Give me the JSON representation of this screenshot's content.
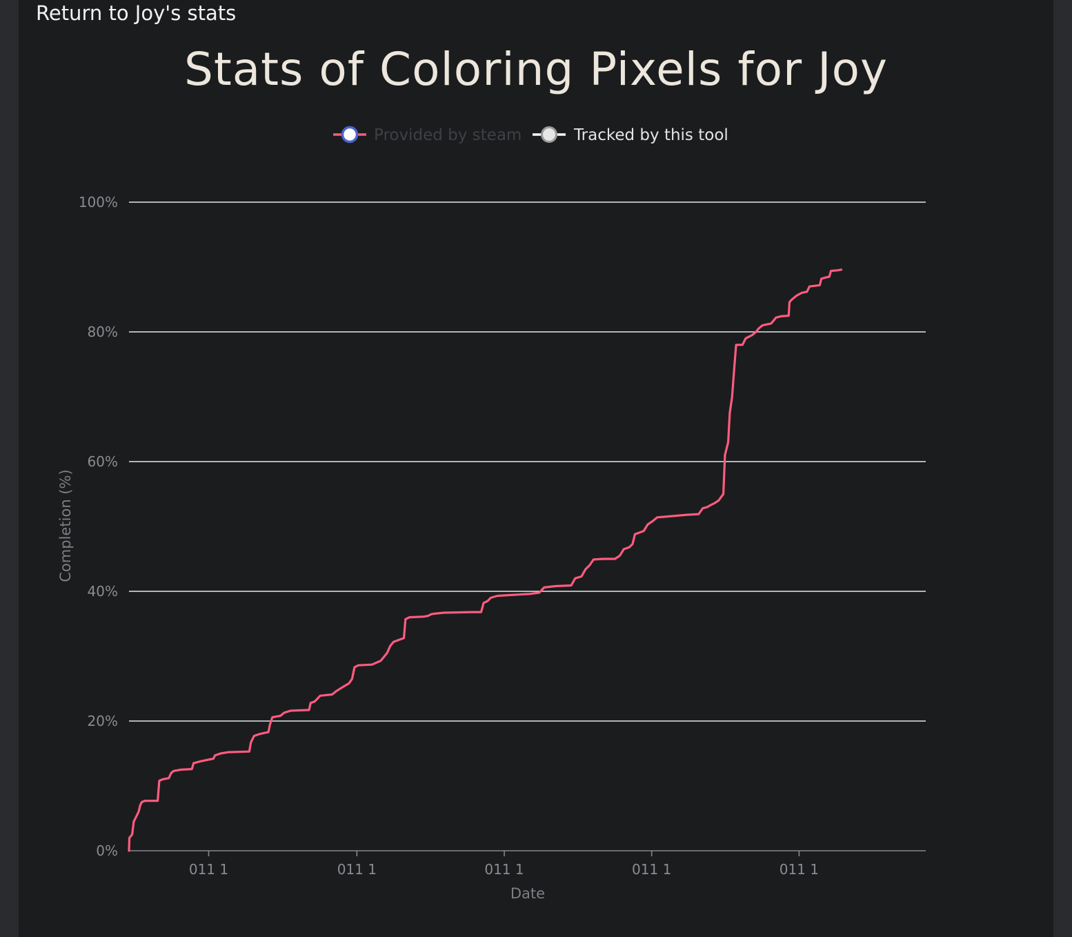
{
  "nav": {
    "return_label": "Return to Joy's stats"
  },
  "page": {
    "title": "Stats of Coloring Pixels for Joy"
  },
  "colors": {
    "panel_bg": "#1b1c1e",
    "gridline": "#e8e8e8",
    "steam_series": "#ff5c7f",
    "tracked_series": "#ffffff",
    "steam_marker_ring": "#4e63c7"
  },
  "chart_data": {
    "type": "line",
    "xlabel": "Date",
    "ylabel": "Completion (%)",
    "ylim": [
      0,
      100
    ],
    "y_ticks": [
      "0%",
      "20%",
      "40%",
      "60%",
      "80%",
      "100%"
    ],
    "x_ticks": [
      "011 1",
      "011 1",
      "011 1",
      "011 1",
      "011 1"
    ],
    "xlim": [
      0,
      100
    ],
    "x_tick_positions": [
      10,
      28.6,
      47.1,
      65.6,
      84.1
    ],
    "grid": true,
    "legend_position": "top-center",
    "series": [
      {
        "name": "Provided by steam",
        "color": "#ff5c7f",
        "legend_dimmed": true,
        "points": [
          [
            0.0,
            0.0
          ],
          [
            0.05,
            2.0
          ],
          [
            0.4,
            2.5
          ],
          [
            0.6,
            4.5
          ],
          [
            1.0,
            5.5
          ],
          [
            1.2,
            6.0
          ],
          [
            1.4,
            7.0
          ],
          [
            1.6,
            7.5
          ],
          [
            2.0,
            7.7
          ],
          [
            2.5,
            7.7
          ],
          [
            3.6,
            7.7
          ],
          [
            3.8,
            10.8
          ],
          [
            4.2,
            11.0
          ],
          [
            5.0,
            11.2
          ],
          [
            5.3,
            12.0
          ],
          [
            5.6,
            12.3
          ],
          [
            6.5,
            12.5
          ],
          [
            7.9,
            12.6
          ],
          [
            8.1,
            13.5
          ],
          [
            9.0,
            13.8
          ],
          [
            10.6,
            14.2
          ],
          [
            10.8,
            14.7
          ],
          [
            11.5,
            15.0
          ],
          [
            12.5,
            15.2
          ],
          [
            15.1,
            15.3
          ],
          [
            15.3,
            16.7
          ],
          [
            15.7,
            17.7
          ],
          [
            16.4,
            18.0
          ],
          [
            17.5,
            18.3
          ],
          [
            17.7,
            19.5
          ],
          [
            18.0,
            20.6
          ],
          [
            19.0,
            20.8
          ],
          [
            19.5,
            21.3
          ],
          [
            20.3,
            21.6
          ],
          [
            22.6,
            21.7
          ],
          [
            22.8,
            22.8
          ],
          [
            23.3,
            23.0
          ],
          [
            24.0,
            23.9
          ],
          [
            25.5,
            24.1
          ],
          [
            26.0,
            24.6
          ],
          [
            26.9,
            25.3
          ],
          [
            27.6,
            25.8
          ],
          [
            28.0,
            26.5
          ],
          [
            28.3,
            28.3
          ],
          [
            28.8,
            28.6
          ],
          [
            30.5,
            28.7
          ],
          [
            31.6,
            29.3
          ],
          [
            32.4,
            30.5
          ],
          [
            32.8,
            31.6
          ],
          [
            33.2,
            32.2
          ],
          [
            34.5,
            32.8
          ],
          [
            34.7,
            35.7
          ],
          [
            35.2,
            36.0
          ],
          [
            37.0,
            36.1
          ],
          [
            37.5,
            36.2
          ],
          [
            38.0,
            36.5
          ],
          [
            39.5,
            36.7
          ],
          [
            43.0,
            36.8
          ],
          [
            44.2,
            36.8
          ],
          [
            44.5,
            38.2
          ],
          [
            45.0,
            38.5
          ],
          [
            45.4,
            39.0
          ],
          [
            46.2,
            39.3
          ],
          [
            47.5,
            39.4
          ],
          [
            50.3,
            39.6
          ],
          [
            51.5,
            39.8
          ],
          [
            52.1,
            40.6
          ],
          [
            53.5,
            40.8
          ],
          [
            55.5,
            40.9
          ],
          [
            56.0,
            42.0
          ],
          [
            56.8,
            42.3
          ],
          [
            57.3,
            43.4
          ],
          [
            57.8,
            44.0
          ],
          [
            58.3,
            44.9
          ],
          [
            59.5,
            45.0
          ],
          [
            61.0,
            45.0
          ],
          [
            61.6,
            45.5
          ],
          [
            62.1,
            46.5
          ],
          [
            62.8,
            46.8
          ],
          [
            63.2,
            47.3
          ],
          [
            63.5,
            48.8
          ],
          [
            64.6,
            49.3
          ],
          [
            65.1,
            50.3
          ],
          [
            65.7,
            50.8
          ],
          [
            66.3,
            51.4
          ],
          [
            67.3,
            51.5
          ],
          [
            70.0,
            51.8
          ],
          [
            71.5,
            51.9
          ],
          [
            72.0,
            52.8
          ],
          [
            72.6,
            53.0
          ],
          [
            73.0,
            53.3
          ],
          [
            73.5,
            53.6
          ],
          [
            74.0,
            54.0
          ],
          [
            74.6,
            55.0
          ],
          [
            74.8,
            61.0
          ],
          [
            75.2,
            63.0
          ],
          [
            75.4,
            67.5
          ],
          [
            75.7,
            70.0
          ],
          [
            76.0,
            75.0
          ],
          [
            76.2,
            78.0
          ],
          [
            77.0,
            78.0
          ],
          [
            77.4,
            79.0
          ],
          [
            78.2,
            79.5
          ],
          [
            78.7,
            80.0
          ],
          [
            79.0,
            80.5
          ],
          [
            79.5,
            81.0
          ],
          [
            80.6,
            81.3
          ],
          [
            81.2,
            82.2
          ],
          [
            81.8,
            82.4
          ],
          [
            82.8,
            82.5
          ],
          [
            82.9,
            84.6
          ],
          [
            83.2,
            85.0
          ],
          [
            83.8,
            85.6
          ],
          [
            84.4,
            86.0
          ],
          [
            85.1,
            86.2
          ],
          [
            85.4,
            87.0
          ],
          [
            86.7,
            87.2
          ],
          [
            86.9,
            88.2
          ],
          [
            87.5,
            88.4
          ],
          [
            87.9,
            88.5
          ],
          [
            88.1,
            89.4
          ],
          [
            89.0,
            89.5
          ],
          [
            89.4,
            89.6
          ]
        ]
      },
      {
        "name": "Tracked by this tool",
        "color": "#ffffff",
        "legend_dimmed": false,
        "points": []
      }
    ]
  }
}
